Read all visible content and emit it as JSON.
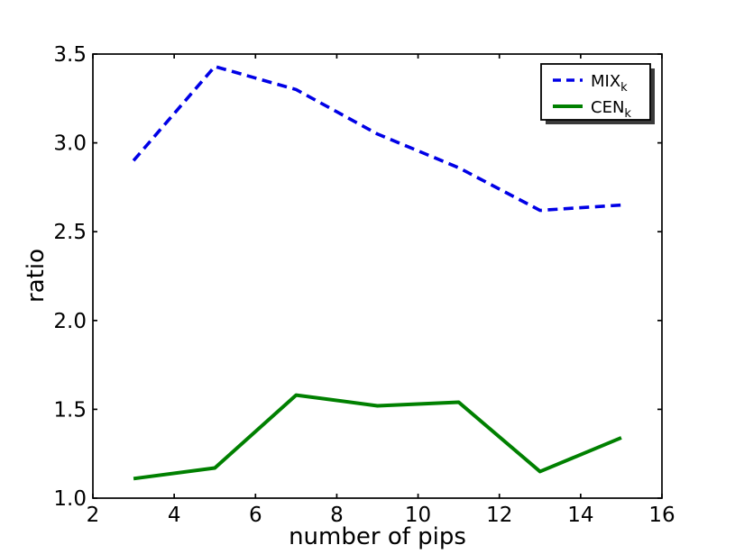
{
  "figure": {
    "background": "#ffffff"
  },
  "chart_data": {
    "type": "line",
    "title": "",
    "xlabel": "number of pips",
    "ylabel": "ratio",
    "xlim": [
      2,
      16
    ],
    "ylim": [
      1.0,
      3.5
    ],
    "xticks": [
      "2",
      "4",
      "6",
      "8",
      "10",
      "12",
      "14",
      "16"
    ],
    "yticks": [
      "1.0",
      "1.5",
      "2.0",
      "2.5",
      "3.0",
      "3.5"
    ],
    "grid": false,
    "legend_position": "upper right",
    "x": [
      3,
      5,
      7,
      9,
      11,
      13,
      15
    ],
    "series": [
      {
        "name": "MIX",
        "sub": "k",
        "style": "dashed",
        "color": "#0000e6",
        "values": [
          2.9,
          3.43,
          3.3,
          3.05,
          2.86,
          2.62,
          2.65
        ]
      },
      {
        "name": "CEN",
        "sub": "k",
        "style": "solid",
        "color": "#008000",
        "values": [
          1.11,
          1.17,
          1.58,
          1.52,
          1.54,
          1.15,
          1.34
        ]
      }
    ]
  },
  "colors": {
    "axis": "#000000",
    "tick_text": "#000000",
    "legend_background": "#ffffff",
    "legend_border": "#000000",
    "legend_shadow": "#3a3a3a"
  }
}
